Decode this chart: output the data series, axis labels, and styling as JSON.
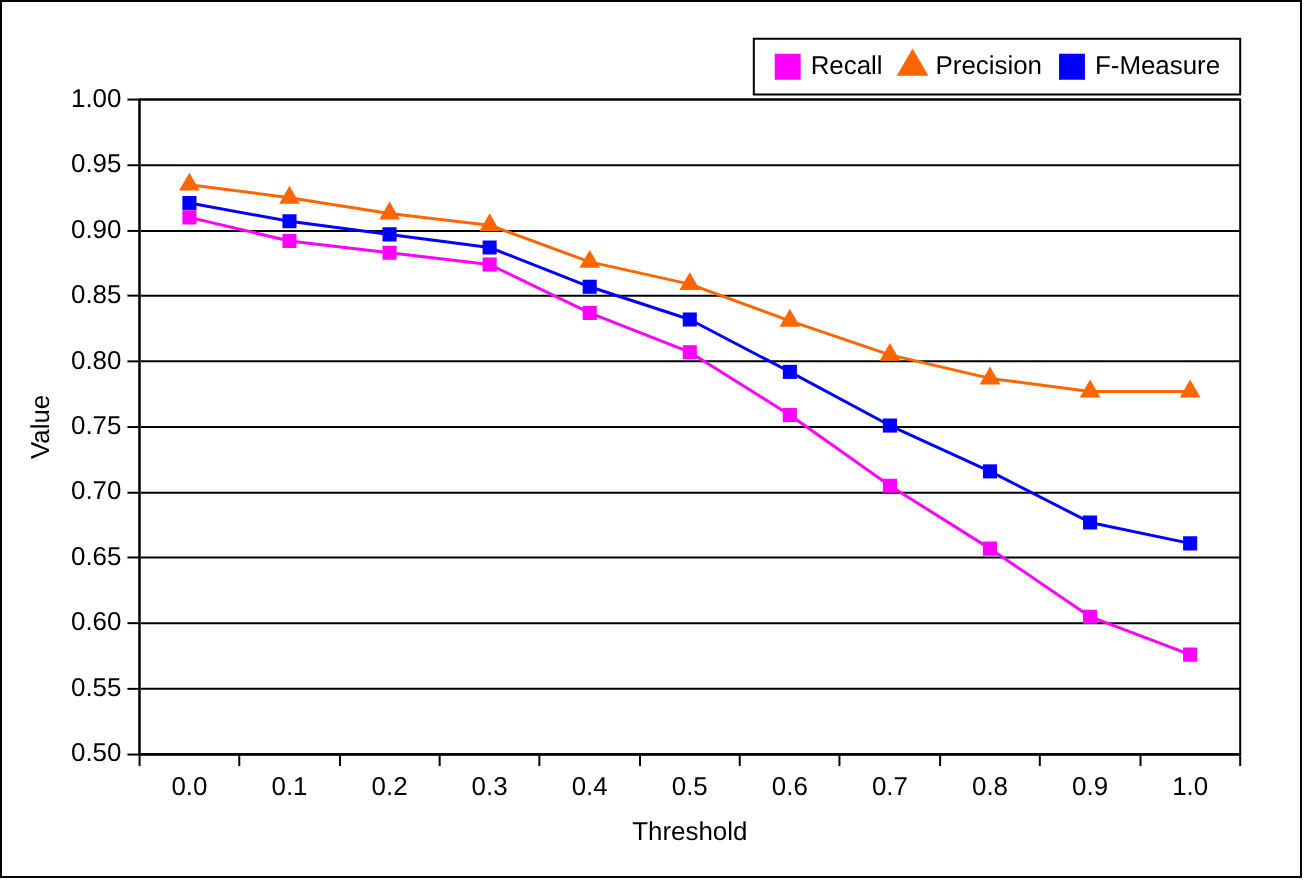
{
  "chart_data": {
    "type": "line",
    "xlabel": "Threshold",
    "ylabel": "Value",
    "categories": [
      "0.0",
      "0.1",
      "0.2",
      "0.3",
      "0.4",
      "0.5",
      "0.6",
      "0.7",
      "0.8",
      "0.9",
      "1.0"
    ],
    "series": [
      {
        "name": "Recall",
        "color": "#ff00ff",
        "marker": "square",
        "values": [
          0.91,
          0.892,
          0.883,
          0.874,
          0.837,
          0.807,
          0.759,
          0.705,
          0.657,
          0.605,
          0.576
        ]
      },
      {
        "name": "Precision",
        "color": "#ff6600",
        "marker": "triangle",
        "values": [
          0.935,
          0.925,
          0.913,
          0.904,
          0.876,
          0.859,
          0.831,
          0.805,
          0.787,
          0.777,
          0.777
        ]
      },
      {
        "name": "F-Measure",
        "color": "#0000ff",
        "marker": "square",
        "values": [
          0.921,
          0.907,
          0.897,
          0.887,
          0.857,
          0.832,
          0.792,
          0.751,
          0.716,
          0.677,
          0.661
        ]
      }
    ],
    "ylim": [
      0.5,
      1.0
    ],
    "yticks": [
      {
        "value": 0.5,
        "label": "0.50"
      },
      0.55,
      {
        "value": 0.6,
        "label": "0.60"
      },
      0.65,
      {
        "value": 0.7,
        "label": "0.70"
      },
      0.75,
      {
        "value": 0.8,
        "label": "0.80"
      },
      0.85,
      {
        "value": 0.9,
        "label": "0.90"
      },
      0.95,
      {
        "value": 1.0,
        "label": "1.00"
      }
    ],
    "grid": "y",
    "legend": "top right",
    "line_style": "solid"
  }
}
